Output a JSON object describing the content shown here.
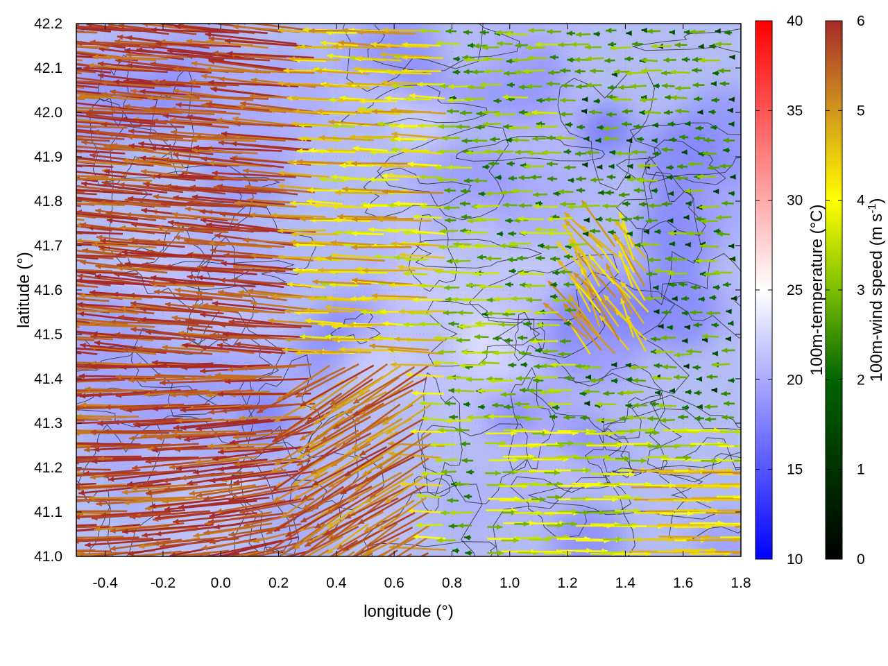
{
  "chart_data": {
    "type": "vector-field",
    "xlabel": "longitude (°)",
    "ylabel": "latitude (°)",
    "xlim": [
      -0.5,
      1.8
    ],
    "ylim": [
      41.0,
      42.2
    ],
    "x_ticks": [
      "-0.4",
      "-0.2",
      "0.0",
      "0.2",
      "0.4",
      "0.6",
      "0.8",
      "1.0",
      "1.2",
      "1.4",
      "1.6",
      "1.8"
    ],
    "y_ticks": [
      "41.0",
      "41.1",
      "41.2",
      "41.3",
      "41.4",
      "41.5",
      "41.6",
      "41.7",
      "41.8",
      "41.9",
      "42.0",
      "42.1",
      "42.2"
    ],
    "grid": true,
    "background_field": {
      "name": "100m-temperature (°C)",
      "colorbar_label": "100m-temperature (°C)",
      "range": [
        10,
        40
      ],
      "ticks": [
        "10",
        "15",
        "20",
        "25",
        "30",
        "35",
        "40"
      ],
      "colormap": [
        "#0000ff",
        "#ffffff",
        "#ff0000"
      ],
      "typical_values_by_region": [
        {
          "region": "west (lon < 0.5)",
          "temperature": 19
        },
        {
          "region": "center (lon 0.5 - 1.0)",
          "temperature": 21
        },
        {
          "region": "east (lon > 1.2)",
          "temperature": 18
        }
      ]
    },
    "vector_field": {
      "name": "100m-wind speed (m s-1)",
      "colorbar_label_main": "100m-wind speed (m s",
      "colorbar_label_sup": "-1",
      "colorbar_label_end": ")",
      "range": [
        0,
        6
      ],
      "ticks": [
        "0",
        "1",
        "2",
        "3",
        "4",
        "5",
        "6"
      ],
      "colormap": [
        "#000000",
        "#006400",
        "#7cbe00",
        "#ffff00",
        "#d2961e",
        "#a52a2a"
      ],
      "regimes": [
        {
          "region": "west (lon < 0.4)",
          "direction": "westward",
          "speed": 6
        },
        {
          "region": "center-north",
          "direction": "westward",
          "speed": 3.5
        },
        {
          "region": "east-north",
          "direction": "westward",
          "speed": 1.5
        },
        {
          "region": "south-east (lat < 41.3, lon > 0.9)",
          "direction": "eastward",
          "speed": 2.8
        },
        {
          "region": "center-south",
          "direction": "north-westward",
          "speed": 4.5
        }
      ]
    },
    "contours": {
      "color": "#333333",
      "represents": "terrain elevation"
    }
  }
}
